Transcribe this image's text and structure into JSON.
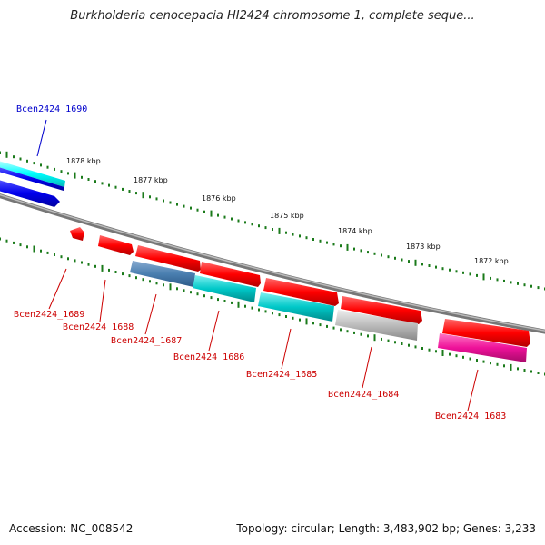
{
  "title": "Burkholderia cenocepacia HI2424 chromosome 1, complete seque...",
  "footer": {
    "accession": "Accession: NC_008542",
    "summary": "Topology: circular; Length: 3,483,902 bp; Genes: 3,233"
  },
  "ruler": {
    "labels": [
      "1878 kbp",
      "1877 kbp",
      "1876 kbp",
      "1875 kbp",
      "1874 kbp",
      "1873 kbp",
      "1872 kbp"
    ]
  },
  "genes": [
    {
      "id": "Bcen2424_1690",
      "color": "#0000cc"
    },
    {
      "id": "Bcen2424_1689",
      "color": "#cc0000"
    },
    {
      "id": "Bcen2424_1688",
      "color": "#cc0000"
    },
    {
      "id": "Bcen2424_1687",
      "color": "#cc0000"
    },
    {
      "id": "Bcen2424_1686",
      "color": "#cc0000"
    },
    {
      "id": "Bcen2424_1685",
      "color": "#cc0000"
    },
    {
      "id": "Bcen2424_1684",
      "color": "#cc0000"
    },
    {
      "id": "Bcen2424_1683",
      "color": "#cc0000"
    }
  ],
  "colors": {
    "backbone": "#888888",
    "ticks": "#1a7a1a",
    "cds": "#ff0000",
    "rna": "#00cccc",
    "steelblue": "#4a7fb0",
    "gray": "#bbbbbb",
    "magenta": "#ee1199",
    "blue": "#0000ee",
    "cyan": "#00ffff"
  }
}
